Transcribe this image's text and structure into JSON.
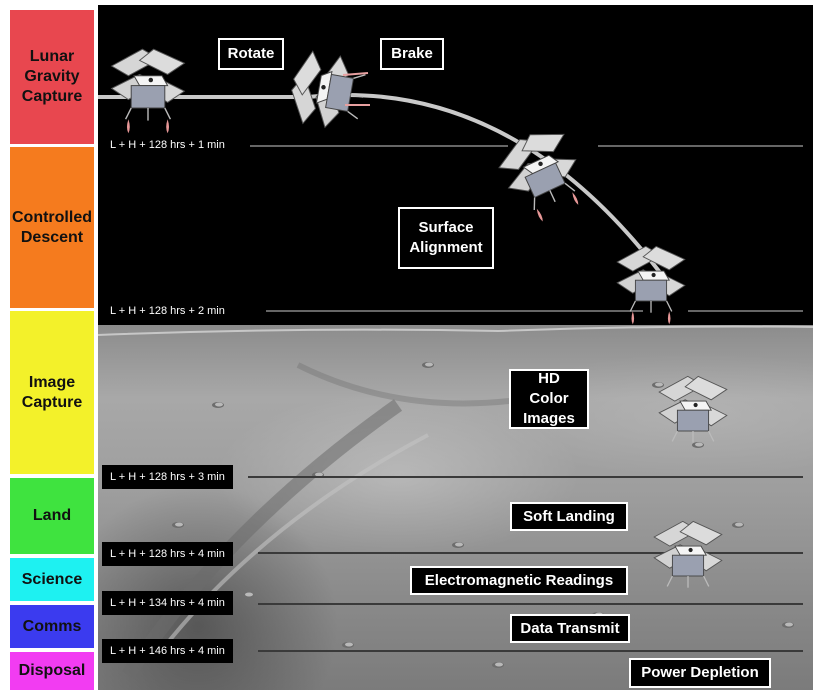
{
  "phases": [
    {
      "label": "Lunar Gravity Capture",
      "color": "#e8474f"
    },
    {
      "label": "Controlled Descent",
      "color": "#f57b1e"
    },
    {
      "label": "Image Capture",
      "color": "#f3f12a"
    },
    {
      "label": "Land",
      "color": "#3fe33f"
    },
    {
      "label": "Science",
      "color": "#1ef1f1"
    },
    {
      "label": "Comms",
      "color": "#3b3bef"
    },
    {
      "label": "Disposal",
      "color": "#f23cf2"
    }
  ],
  "timestamps": [
    "L + H + 128 hrs + 1 min",
    "L + H + 128 hrs + 2 min",
    "L + H + 128 hrs + 3 min",
    "L + H + 128 hrs + 4 min",
    "L + H + 134 hrs + 4 min",
    "L + H + 146 hrs + 4 min"
  ],
  "callouts": {
    "rotate": "Rotate",
    "brake": "Brake",
    "surface_alignment": "Surface Alignment",
    "hd_color_images": "HD Color Images",
    "soft_landing": "Soft Landing",
    "electromagnetic_readings": "Electromagnetic Readings",
    "data_transmit": "Data Transmit",
    "power_depletion": "Power Depletion"
  }
}
